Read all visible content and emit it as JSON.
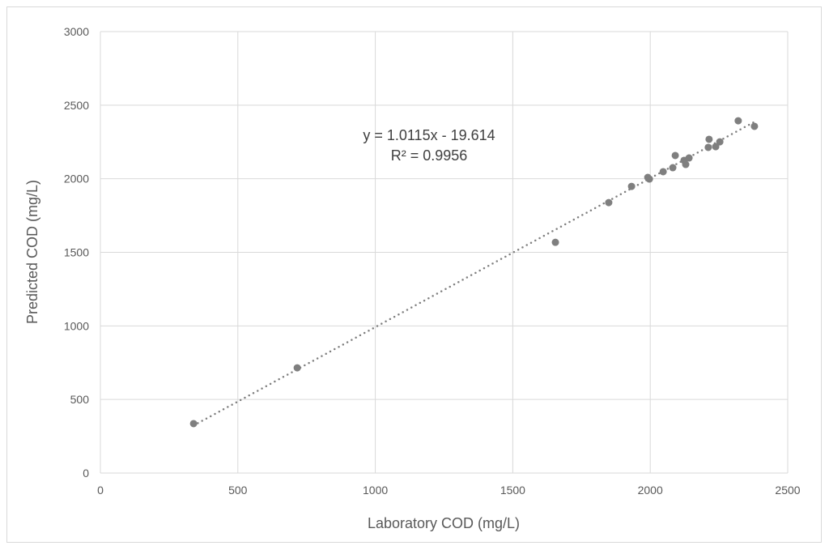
{
  "chart_data": {
    "type": "scatter",
    "title": "",
    "xlabel": "Laboratory COD (mg/L)",
    "ylabel": "Predicted COD (mg/L)",
    "xlim": [
      0,
      2500
    ],
    "ylim": [
      0,
      3000
    ],
    "xticks": [
      0,
      500,
      1000,
      1500,
      2000,
      2500
    ],
    "yticks": [
      0,
      500,
      1000,
      1500,
      2000,
      2500,
      3000
    ],
    "grid": true,
    "legend": "none",
    "marker_color": "#7f7f7f",
    "points": [
      [
        339,
        336
      ],
      [
        716,
        715
      ],
      [
        1655,
        1568
      ],
      [
        1849,
        1838
      ],
      [
        1932,
        1948
      ],
      [
        1991,
        2009
      ],
      [
        1997,
        1998
      ],
      [
        2047,
        2048
      ],
      [
        2082,
        2075
      ],
      [
        2091,
        2158
      ],
      [
        2123,
        2125
      ],
      [
        2129,
        2097
      ],
      [
        2141,
        2141
      ],
      [
        2211,
        2213
      ],
      [
        2214,
        2268
      ],
      [
        2238,
        2218
      ],
      [
        2253,
        2251
      ],
      [
        2320,
        2394
      ],
      [
        2379,
        2356
      ]
    ],
    "trendline": {
      "type": "linear",
      "slope": 1.0115,
      "intercept": -19.614,
      "style": "dotted",
      "equation_label": "y = 1.0115x - 19.614",
      "r2_label": "R² = 0.9956"
    }
  }
}
